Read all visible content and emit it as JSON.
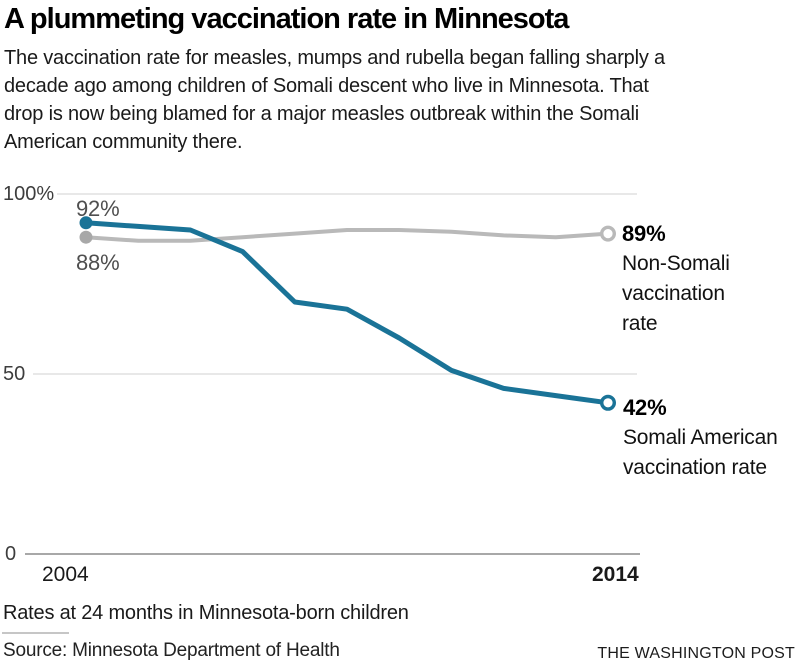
{
  "header": {
    "title": "A plummeting vaccination rate in Minnesota",
    "subtitle_lines": [
      "The vaccination rate for measles, mumps and rubella began falling sharply a",
      "decade ago among children of Somali descent who live in Minnesota. That",
      "drop is now being blamed for a major measles outbreak within the Somali",
      "American community there."
    ]
  },
  "chart_data": {
    "type": "line",
    "title": "A plummeting vaccination rate in Minnesota",
    "x": [
      2004,
      2005,
      2006,
      2007,
      2008,
      2009,
      2010,
      2011,
      2012,
      2013,
      2014
    ],
    "series": [
      {
        "name": "Non-Somali vaccination rate",
        "color": "#b9b9b9",
        "dot_color": "#a8a8a8",
        "values": [
          88,
          87,
          87,
          88,
          89,
          90,
          90,
          89.5,
          88.5,
          88,
          89
        ],
        "start_label": "88%",
        "end_label": "89%"
      },
      {
        "name": "Somali American vaccination rate",
        "color": "#1a7397",
        "dot_color": "#1a7397",
        "values": [
          92,
          91,
          90,
          84,
          70,
          68,
          60,
          51,
          46,
          44,
          42
        ],
        "start_label": "92%",
        "end_label": "42%"
      }
    ],
    "ylim": [
      0,
      100
    ],
    "yticks": [
      {
        "label": "100%",
        "value": 100
      },
      {
        "label": "50",
        "value": 50
      },
      {
        "label": "0",
        "value": 0
      }
    ],
    "xticks": [
      {
        "label": "2004",
        "year": 2004
      },
      {
        "label": "2014",
        "year": 2014
      }
    ],
    "grid": "horizontal",
    "legend_position": "end-of-line annotations",
    "grid_color": "#dadada",
    "baseline_color": "#9c9c9c"
  },
  "annotations": {
    "nonsomali_end": {
      "lines": [
        "Non-Somali",
        "vaccination",
        "rate"
      ]
    },
    "somali_end": {
      "lines": [
        "Somali American",
        "vaccination rate"
      ]
    }
  },
  "footer": {
    "note": "Rates at 24 months in Minnesota-born children",
    "source": "Source: Minnesota Department of Health",
    "credit": "THE WASHINGTON POST"
  }
}
